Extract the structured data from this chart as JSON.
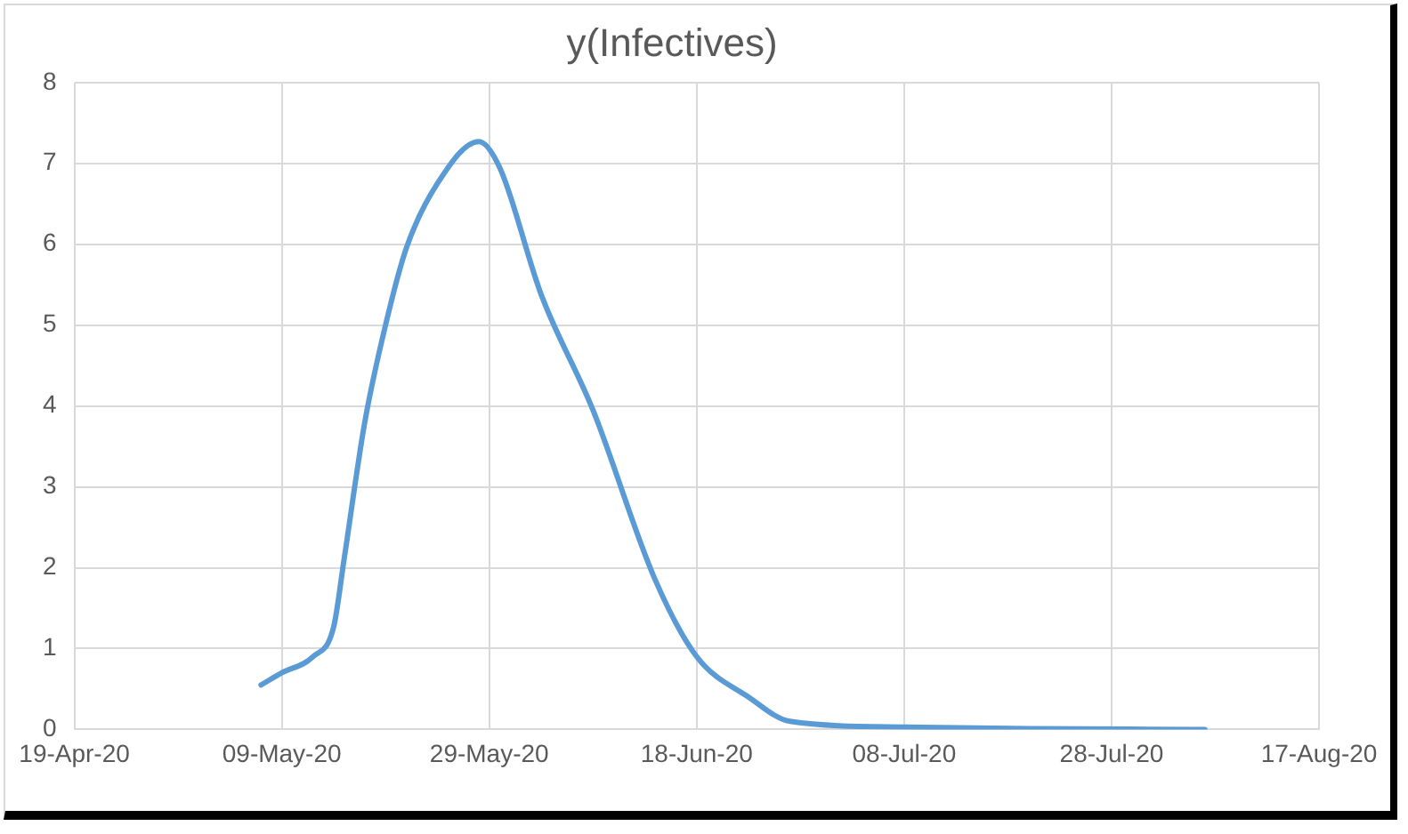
{
  "chart_data": {
    "type": "line",
    "title": "y(Infectives)",
    "x": [
      "2020-05-07",
      "2020-05-09",
      "2020-05-12",
      "2020-05-14",
      "2020-05-15",
      "2020-05-17",
      "2020-05-19",
      "2020-05-21",
      "2020-05-24",
      "2020-05-28",
      "2020-05-30",
      "2020-06-03",
      "2020-06-08",
      "2020-06-14",
      "2020-06-18",
      "2020-06-23",
      "2020-06-27",
      "2020-07-08",
      "2020-07-20",
      "2020-08-06"
    ],
    "series": [
      {
        "color": "#5b9bd5",
        "values": [
          0.55,
          0.7,
          0.9,
          1.27,
          2.1,
          3.8,
          5.0,
          5.95,
          6.75,
          7.27,
          6.95,
          5.38,
          3.95,
          1.85,
          0.9,
          0.4,
          0.1,
          0.03,
          0.01,
          0
        ]
      }
    ],
    "xlim": [
      "2020-04-19",
      "2020-08-17"
    ],
    "xticks": [
      {
        "value": "2020-04-19",
        "label": "19-Apr-20"
      },
      {
        "value": "2020-05-09",
        "label": "09-May-20"
      },
      {
        "value": "2020-05-29",
        "label": "29-May-20"
      },
      {
        "value": "2020-06-18",
        "label": "18-Jun-20"
      },
      {
        "value": "2020-07-08",
        "label": "08-Jul-20"
      },
      {
        "value": "2020-07-28",
        "label": "28-Jul-20"
      },
      {
        "value": "2020-08-17",
        "label": "17-Aug-20"
      }
    ],
    "ylim": [
      0,
      8
    ],
    "yticks": [
      0,
      1,
      2,
      3,
      4,
      5,
      6,
      7,
      8
    ],
    "grid": true,
    "legend": false,
    "marker": "none",
    "line_style": "solid"
  }
}
